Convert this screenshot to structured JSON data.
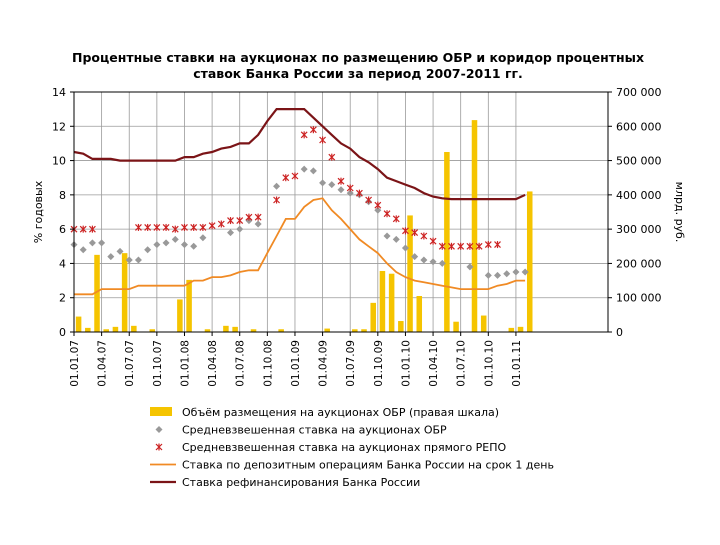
{
  "chart_data": {
    "type": "bar+line+scatter",
    "title_lines": [
      "Процентные ставки на аукционах по размещению ОБР и коридор процентных",
      "ставок Банка России за период 2007-2011 гг."
    ],
    "y_left": {
      "label": "% годовых",
      "range": [
        0,
        14
      ],
      "ticks": [
        "0",
        "2",
        "4",
        "6",
        "8",
        "10",
        "12",
        "14"
      ]
    },
    "y_right": {
      "label": "млрд. руб.",
      "range": [
        0,
        700000
      ],
      "ticks": [
        "0",
        "100 000",
        "200 000",
        "300 000",
        "400 000",
        "500 000",
        "600 000",
        "700 000"
      ]
    },
    "x_ticks": [
      "01.01.07",
      "01.04.07",
      "01.07.07",
      "01.10.07",
      "01.01.08",
      "01.04.08",
      "01.07.08",
      "01.10.08",
      "01.01.09",
      "01.04.09",
      "01.07.09",
      "01.10.09",
      "01.01.10",
      "01.04.10",
      "01.07.10",
      "01.10.10",
      "01.01.11"
    ],
    "x_range_months": [
      0,
      58
    ],
    "series": [
      {
        "name": "Объём размещения на аукционах ОБР (правая шкала)",
        "kind": "bar",
        "axis": "right",
        "color": "#f5c400",
        "points": [
          [
            0.5,
            45000
          ],
          [
            1.5,
            12000
          ],
          [
            2.5,
            225000
          ],
          [
            3.5,
            8000
          ],
          [
            4.5,
            15000
          ],
          [
            5.5,
            230000
          ],
          [
            6.5,
            18000
          ],
          [
            8.5,
            8000
          ],
          [
            11.5,
            95000
          ],
          [
            12.5,
            152000
          ],
          [
            14.5,
            8000
          ],
          [
            16.5,
            18000
          ],
          [
            17.5,
            15000
          ],
          [
            19.5,
            8000
          ],
          [
            22.5,
            8000
          ],
          [
            27.5,
            10000
          ],
          [
            30.5,
            8000
          ],
          [
            31.5,
            8000
          ],
          [
            32.5,
            85000
          ],
          [
            33.5,
            178000
          ],
          [
            34.5,
            170000
          ],
          [
            35.5,
            32000
          ],
          [
            36.5,
            340000
          ],
          [
            37.5,
            105000
          ],
          [
            40.5,
            525000
          ],
          [
            41.5,
            30000
          ],
          [
            43.5,
            618000
          ],
          [
            44.5,
            48000
          ],
          [
            47.5,
            12000
          ],
          [
            48.5,
            15000
          ],
          [
            49.5,
            410000
          ]
        ]
      },
      {
        "name": "Средневзвешенная ставка на аукционах ОБР",
        "kind": "scatter",
        "marker": "diamond",
        "axis": "left",
        "color": "#999999",
        "points": [
          [
            0,
            5.1
          ],
          [
            1,
            4.8
          ],
          [
            2,
            5.2
          ],
          [
            3,
            5.2
          ],
          [
            4,
            4.4
          ],
          [
            5,
            4.7
          ],
          [
            6,
            4.2
          ],
          [
            7,
            4.2
          ],
          [
            8,
            4.8
          ],
          [
            9,
            5.1
          ],
          [
            10,
            5.2
          ],
          [
            11,
            5.4
          ],
          [
            12,
            5.1
          ],
          [
            13,
            5.0
          ],
          [
            14,
            5.5
          ],
          [
            17,
            5.8
          ],
          [
            18,
            6.0
          ],
          [
            19,
            6.5
          ],
          [
            20,
            6.3
          ],
          [
            22,
            8.5
          ],
          [
            25,
            9.5
          ],
          [
            26,
            9.4
          ],
          [
            27,
            8.7
          ],
          [
            28,
            8.6
          ],
          [
            29,
            8.3
          ],
          [
            30,
            8.1
          ],
          [
            31,
            8.0
          ],
          [
            32,
            7.6
          ],
          [
            33,
            7.1
          ],
          [
            34,
            5.6
          ],
          [
            35,
            5.4
          ],
          [
            36,
            4.9
          ],
          [
            37,
            4.4
          ],
          [
            38,
            4.2
          ],
          [
            39,
            4.1
          ],
          [
            40,
            4.0
          ],
          [
            43,
            3.8
          ],
          [
            45,
            3.3
          ],
          [
            46,
            3.3
          ],
          [
            47,
            3.4
          ],
          [
            48,
            3.5
          ],
          [
            49,
            3.5
          ]
        ]
      },
      {
        "name": "Средневзвешенная ставка на аукционах прямого РЕПО",
        "kind": "scatter",
        "marker": "asterisk",
        "axis": "left",
        "color": "#cc2222",
        "points": [
          [
            0,
            6.0
          ],
          [
            1,
            6.0
          ],
          [
            2,
            6.0
          ],
          [
            7,
            6.1
          ],
          [
            8,
            6.1
          ],
          [
            9,
            6.1
          ],
          [
            10,
            6.1
          ],
          [
            11,
            6.0
          ],
          [
            12,
            6.1
          ],
          [
            13,
            6.1
          ],
          [
            14,
            6.1
          ],
          [
            15,
            6.2
          ],
          [
            16,
            6.3
          ],
          [
            17,
            6.5
          ],
          [
            18,
            6.5
          ],
          [
            19,
            6.7
          ],
          [
            20,
            6.7
          ],
          [
            22,
            7.7
          ],
          [
            23,
            9.0
          ],
          [
            24,
            9.1
          ],
          [
            25,
            11.5
          ],
          [
            26,
            11.8
          ],
          [
            27,
            11.2
          ],
          [
            28,
            10.2
          ],
          [
            29,
            8.8
          ],
          [
            30,
            8.4
          ],
          [
            31,
            8.1
          ],
          [
            32,
            7.7
          ],
          [
            33,
            7.4
          ],
          [
            34,
            6.9
          ],
          [
            35,
            6.6
          ],
          [
            36,
            5.9
          ],
          [
            37,
            5.8
          ],
          [
            38,
            5.6
          ],
          [
            39,
            5.3
          ],
          [
            40,
            5.0
          ],
          [
            41,
            5.0
          ],
          [
            42,
            5.0
          ],
          [
            43,
            5.0
          ],
          [
            44,
            5.0
          ],
          [
            45,
            5.1
          ],
          [
            46,
            5.1
          ]
        ]
      },
      {
        "name": "Ставка по депозитным операциям Банка России на срок 1 день",
        "kind": "line",
        "axis": "left",
        "color": "#f08a24",
        "points": [
          [
            0,
            2.2
          ],
          [
            2,
            2.2
          ],
          [
            3,
            2.5
          ],
          [
            6,
            2.5
          ],
          [
            7,
            2.7
          ],
          [
            12,
            2.7
          ],
          [
            13,
            3.0
          ],
          [
            14,
            3.0
          ],
          [
            15,
            3.2
          ],
          [
            16,
            3.2
          ],
          [
            17,
            3.3
          ],
          [
            18,
            3.5
          ],
          [
            19,
            3.6
          ],
          [
            20,
            3.6
          ],
          [
            21,
            4.6
          ],
          [
            22,
            5.6
          ],
          [
            23,
            6.6
          ],
          [
            24,
            6.6
          ],
          [
            25,
            7.3
          ],
          [
            26,
            7.7
          ],
          [
            27,
            7.8
          ],
          [
            28,
            7.1
          ],
          [
            29,
            6.6
          ],
          [
            30,
            6.0
          ],
          [
            31,
            5.4
          ],
          [
            32,
            5.0
          ],
          [
            33,
            4.6
          ],
          [
            34,
            4.0
          ],
          [
            35,
            3.5
          ],
          [
            36,
            3.2
          ],
          [
            37,
            3.0
          ],
          [
            38,
            2.9
          ],
          [
            39,
            2.8
          ],
          [
            40,
            2.7
          ],
          [
            41,
            2.6
          ],
          [
            42,
            2.5
          ],
          [
            43,
            2.5
          ],
          [
            44,
            2.5
          ],
          [
            45,
            2.5
          ],
          [
            46,
            2.7
          ],
          [
            47,
            2.8
          ],
          [
            48,
            3.0
          ],
          [
            49,
            3.0
          ]
        ]
      },
      {
        "name": "Ставка рефинансирования Банка России",
        "kind": "line",
        "axis": "left",
        "color": "#7b1417",
        "points": [
          [
            0,
            10.5
          ],
          [
            1,
            10.4
          ],
          [
            2,
            10.1
          ],
          [
            3,
            10.1
          ],
          [
            4,
            10.1
          ],
          [
            5,
            10.0
          ],
          [
            6,
            10.0
          ],
          [
            7,
            10.0
          ],
          [
            8,
            10.0
          ],
          [
            9,
            10.0
          ],
          [
            10,
            10.0
          ],
          [
            11,
            10.0
          ],
          [
            12,
            10.2
          ],
          [
            13,
            10.2
          ],
          [
            14,
            10.4
          ],
          [
            15,
            10.5
          ],
          [
            16,
            10.7
          ],
          [
            17,
            10.8
          ],
          [
            18,
            11.0
          ],
          [
            19,
            11.0
          ],
          [
            20,
            11.5
          ],
          [
            21,
            12.3
          ],
          [
            22,
            13.0
          ],
          [
            23,
            13.0
          ],
          [
            24,
            13.0
          ],
          [
            25,
            13.0
          ],
          [
            26,
            12.5
          ],
          [
            27,
            12.0
          ],
          [
            28,
            11.5
          ],
          [
            29,
            11.0
          ],
          [
            30,
            10.7
          ],
          [
            31,
            10.2
          ],
          [
            32,
            9.9
          ],
          [
            33,
            9.5
          ],
          [
            34,
            9.0
          ],
          [
            35,
            8.8
          ],
          [
            36,
            8.6
          ],
          [
            37,
            8.4
          ],
          [
            38,
            8.1
          ],
          [
            39,
            7.9
          ],
          [
            40,
            7.8
          ],
          [
            41,
            7.75
          ],
          [
            42,
            7.75
          ],
          [
            43,
            7.75
          ],
          [
            44,
            7.75
          ],
          [
            45,
            7.75
          ],
          [
            46,
            7.75
          ],
          [
            47,
            7.75
          ],
          [
            48,
            7.75
          ],
          [
            49,
            8.0
          ]
        ]
      }
    ],
    "grid": true,
    "legend_position": "bottom"
  }
}
